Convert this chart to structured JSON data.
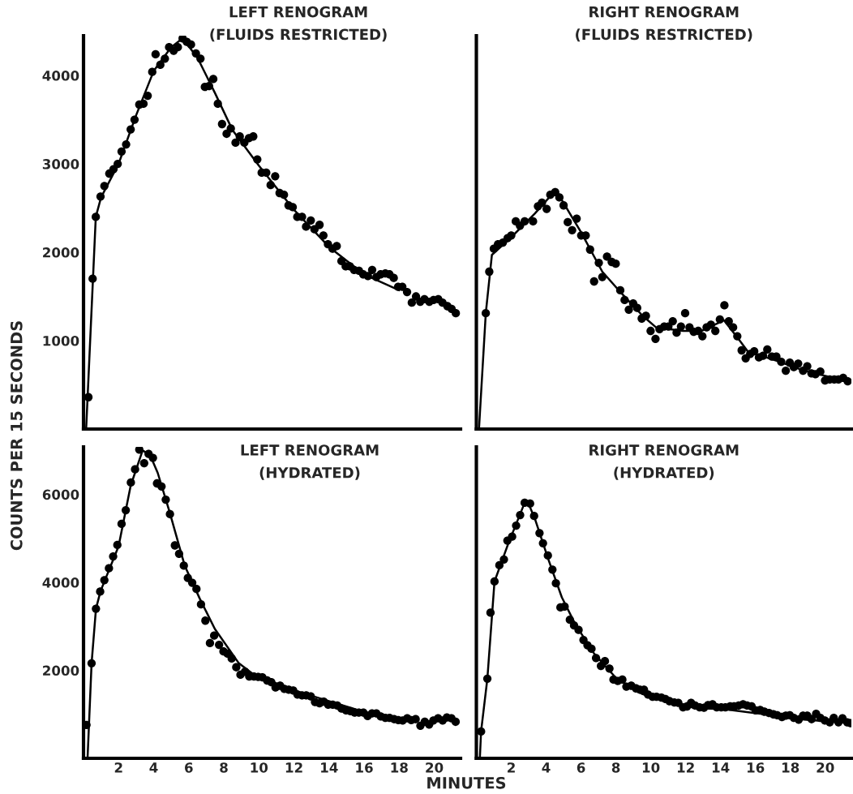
{
  "chart_data": [
    {
      "type": "scatter",
      "title": "LEFT RENOGRAM",
      "subtitle": "(FLUIDS RESTRICTED)",
      "ylabel": "COUNTS PER 15 SECONDS",
      "xlim": [
        0,
        21.5
      ],
      "xticks": [
        2,
        4,
        6,
        8,
        10,
        12,
        14,
        16,
        18,
        20
      ],
      "ylim": [
        0,
        4450
      ],
      "yticks": [
        1000,
        2000,
        3000,
        4000
      ],
      "tick_labels": "y",
      "line_style": "solid",
      "grid": false,
      "legend": false,
      "series": [
        {
          "marker": "circle",
          "color": "#000000",
          "x": [
            0.28,
            0.52,
            0.7,
            0.97,
            1.19,
            1.47,
            1.71,
            1.95,
            2.17,
            2.43,
            2.69,
            2.91,
            3.18,
            3.42,
            3.66,
            3.92,
            4.11,
            4.38,
            4.64,
            4.88,
            5.14,
            5.38,
            5.65,
            5.89,
            6.13,
            6.41,
            6.67,
            6.92,
            7.16,
            7.4,
            7.66,
            7.9,
            8.16,
            8.4,
            8.67,
            8.91,
            9.17,
            9.43,
            9.68,
            9.91,
            10.16,
            10.42,
            10.67,
            10.93,
            11.18,
            11.43,
            11.69,
            11.93,
            12.19,
            12.46,
            12.69,
            12.96,
            13.17,
            13.46,
            13.68,
            13.94,
            14.2,
            14.44,
            14.71,
            14.95,
            15.19,
            15.43,
            15.71,
            15.95,
            16.22,
            16.46,
            16.7,
            16.94,
            17.21,
            17.45,
            17.69,
            17.94,
            18.18,
            18.45,
            18.72,
            18.96,
            19.2,
            19.44,
            19.72,
            19.96,
            20.23,
            20.47,
            20.75,
            20.99,
            21.23
          ],
          "values": [
            360,
            1700,
            2400,
            2630,
            2750,
            2890,
            2940,
            3000,
            3140,
            3220,
            3390,
            3500,
            3670,
            3680,
            3770,
            4040,
            4240,
            4120,
            4190,
            4320,
            4280,
            4320,
            4420,
            4380,
            4350,
            4250,
            4190,
            3870,
            3880,
            3960,
            3680,
            3450,
            3340,
            3400,
            3240,
            3310,
            3240,
            3290,
            3310,
            3050,
            2900,
            2900,
            2760,
            2860,
            2670,
            2650,
            2530,
            2510,
            2400,
            2400,
            2290,
            2360,
            2260,
            2310,
            2190,
            2090,
            2040,
            2070,
            1900,
            1840,
            1840,
            1800,
            1790,
            1750,
            1730,
            1800,
            1720,
            1750,
            1760,
            1750,
            1710,
            1610,
            1610,
            1550,
            1430,
            1500,
            1440,
            1470,
            1440,
            1460,
            1470,
            1430,
            1390,
            1360,
            1310
          ]
        },
        {
          "type": "line",
          "color": "#000000",
          "x": [
            0.15,
            0.7,
            1.0,
            2.0,
            3.0,
            4.0,
            5.0,
            5.65,
            6.5,
            7.5,
            8.5,
            10.0,
            12.0,
            14.0,
            16.0,
            18.0
          ],
          "values": [
            0,
            2400,
            2620,
            3000,
            3550,
            4050,
            4320,
            4420,
            4200,
            3800,
            3380,
            2980,
            2480,
            2060,
            1750,
            1570
          ]
        }
      ]
    },
    {
      "type": "scatter",
      "title": "RIGHT RENOGRAM",
      "subtitle": "(FLUIDS RESTRICTED)",
      "xlim": [
        0,
        21.5
      ],
      "xticks": [
        2,
        4,
        6,
        8,
        10,
        12,
        14,
        16,
        18,
        20
      ],
      "ylim": [
        0,
        4450
      ],
      "yticks": [
        1000,
        2000,
        3000,
        4000
      ],
      "tick_labels": false,
      "line_style": "solid",
      "grid": false,
      "legend": false,
      "series": [
        {
          "marker": "circle",
          "color": "#000000",
          "x": [
            0.54,
            0.74,
            1.0,
            1.24,
            1.52,
            1.79,
            2.0,
            2.26,
            2.5,
            2.77,
            3.25,
            3.53,
            3.76,
            4.03,
            4.24,
            4.52,
            4.76,
            5.0,
            5.24,
            5.49,
            5.75,
            6.01,
            6.27,
            6.52,
            6.75,
            7.02,
            7.22,
            7.49,
            7.76,
            7.99,
            8.25,
            8.5,
            8.74,
            8.99,
            9.22,
            9.48,
            9.72,
            9.99,
            10.27,
            10.5,
            10.77,
            11.01,
            11.26,
            11.48,
            11.73,
            11.97,
            12.22,
            12.46,
            12.72,
            12.96,
            13.2,
            13.45,
            13.7,
            13.96,
            14.22,
            14.47,
            14.72,
            14.96,
            15.21,
            15.44,
            15.7,
            15.93,
            16.2,
            16.44,
            16.68,
            16.94,
            17.2,
            17.48,
            17.74,
            17.97,
            18.2,
            18.45,
            18.73,
            18.97,
            19.21,
            19.44,
            19.72,
            19.99,
            20.26,
            20.52,
            20.76,
            21.03,
            21.29
          ],
          "values": [
            1310,
            1780,
            2040,
            2090,
            2110,
            2160,
            2190,
            2350,
            2300,
            2350,
            2350,
            2520,
            2560,
            2490,
            2650,
            2680,
            2620,
            2530,
            2340,
            2250,
            2380,
            2190,
            2190,
            2030,
            1670,
            1880,
            1720,
            1950,
            1890,
            1870,
            1570,
            1460,
            1350,
            1420,
            1370,
            1250,
            1280,
            1110,
            1020,
            1130,
            1160,
            1160,
            1220,
            1090,
            1160,
            1310,
            1150,
            1100,
            1110,
            1050,
            1150,
            1180,
            1110,
            1240,
            1400,
            1220,
            1150,
            1050,
            890,
            800,
            850,
            880,
            810,
            830,
            900,
            820,
            820,
            760,
            660,
            750,
            700,
            740,
            660,
            710,
            630,
            620,
            650,
            550,
            560,
            560,
            560,
            580,
            540
          ]
        },
        {
          "type": "line",
          "color": "#000000",
          "x": [
            0.15,
            0.54,
            0.89,
            2.0,
            3.36,
            4.49,
            4.9,
            5.99,
            7.22,
            8.3,
            9.54,
            10.3,
            11.85,
            12.9,
            14.2,
            15.1,
            15.55,
            17.25,
            18.8,
            21.29
          ],
          "values": [
            0,
            1310,
            1970,
            2170,
            2440,
            2690,
            2590,
            2230,
            1780,
            1540,
            1280,
            1150,
            1110,
            1110,
            1230,
            1000,
            880,
            770,
            660,
            540
          ]
        }
      ]
    },
    {
      "type": "scatter",
      "title": "LEFT RENOGRAM",
      "subtitle": "(HYDRATED)",
      "xlabel": "MINUTES",
      "xlim": [
        0,
        21.5
      ],
      "xticks": [
        2,
        4,
        6,
        8,
        10,
        12,
        14,
        16,
        18,
        20
      ],
      "ylim": [
        0,
        7080
      ],
      "yticks": [
        2000,
        4000,
        6000
      ],
      "line_style": "solid",
      "grid": false,
      "legend": false,
      "series": [
        {
          "marker": "circle",
          "color": "#000000",
          "x": [
            0.17,
            0.46,
            0.71,
            0.95,
            1.19,
            1.45,
            1.69,
            1.93,
            2.17,
            2.41,
            2.7,
            2.94,
            3.18,
            3.46,
            3.71,
            3.96,
            4.19,
            4.45,
            4.69,
            4.93,
            5.21,
            5.45,
            5.72,
            5.95,
            6.2,
            6.44,
            6.7,
            6.95,
            7.21,
            7.45,
            7.73,
            7.98,
            8.21,
            8.45,
            8.71,
            8.95,
            9.21,
            9.45,
            9.72,
            9.96,
            10.2,
            10.47,
            10.71,
            10.95,
            11.21,
            11.45,
            11.7,
            11.96,
            12.2,
            12.46,
            12.7,
            12.96,
            13.2,
            13.46,
            13.7,
            13.95,
            14.21,
            14.47,
            14.71,
            14.97,
            15.22,
            15.46,
            15.7,
            15.96,
            16.2,
            16.45,
            16.7,
            16.95,
            17.21,
            17.45,
            17.71,
            17.95,
            18.2,
            18.46,
            18.69,
            18.94,
            19.21,
            19.46,
            19.71,
            19.95,
            20.22,
            20.48,
            20.72,
            20.98,
            21.22
          ],
          "values": [
            760,
            2160,
            3400,
            3790,
            4050,
            4320,
            4590,
            4850,
            5330,
            5640,
            6270,
            6570,
            7020,
            6710,
            6920,
            6830,
            6250,
            6180,
            5880,
            5550,
            4840,
            4650,
            4380,
            4100,
            3990,
            3850,
            3500,
            3130,
            2620,
            2790,
            2580,
            2430,
            2380,
            2270,
            2070,
            1900,
            1970,
            1860,
            1860,
            1850,
            1840,
            1770,
            1730,
            1610,
            1650,
            1580,
            1560,
            1540,
            1450,
            1430,
            1430,
            1410,
            1280,
            1250,
            1290,
            1220,
            1220,
            1200,
            1130,
            1090,
            1070,
            1040,
            1040,
            1040,
            960,
            1020,
            1020,
            950,
            920,
            920,
            890,
            870,
            860,
            910,
            870,
            890,
            740,
            830,
            770,
            860,
            910,
            860,
            930,
            910,
            830
          ]
        },
        {
          "type": "line",
          "color": "#000000",
          "x": [
            0.23,
            0.46,
            0.71,
            0.97,
            2.0,
            2.69,
            3.37,
            3.8,
            4.23,
            4.91,
            5.77,
            6.63,
            7.49,
            8.86,
            9.72,
            12.29,
            15.72,
            18.12
          ],
          "values": [
            0,
            2160,
            3400,
            3800,
            4820,
            6200,
            7000,
            6890,
            6490,
            5600,
            4380,
            3630,
            2940,
            2160,
            1900,
            1510,
            1090,
            860
          ]
        }
      ]
    },
    {
      "type": "scatter",
      "title": "RIGHT RENOGRAM",
      "subtitle": "(HYDRATED)",
      "xlim": [
        0,
        21.5
      ],
      "xticks": [
        2,
        4,
        6,
        8,
        10,
        12,
        14,
        16,
        18,
        20
      ],
      "ylim": [
        0,
        7080
      ],
      "yticks": [
        2000,
        4000,
        6000
      ],
      "tick_labels": "x",
      "line_style": "solid",
      "grid": false,
      "legend": false,
      "series": [
        {
          "marker": "circle",
          "color": "#000000",
          "x": [
            0.27,
            0.63,
            0.81,
            1.04,
            1.32,
            1.58,
            1.78,
            2.05,
            2.28,
            2.51,
            2.77,
            3.08,
            3.31,
            3.62,
            3.82,
            4.1,
            4.36,
            4.56,
            4.82,
            5.06,
            5.36,
            5.6,
            5.86,
            6.14,
            6.37,
            6.6,
            6.86,
            7.14,
            7.37,
            7.63,
            7.86,
            8.11,
            8.37,
            8.6,
            8.88,
            9.15,
            9.38,
            9.61,
            9.84,
            10.1,
            10.33,
            10.61,
            10.84,
            11.07,
            11.35,
            11.58,
            11.85,
            12.08,
            12.31,
            12.54,
            12.8,
            13.05,
            13.28,
            13.54,
            13.78,
            14.04,
            14.28,
            14.55,
            14.78,
            15.04,
            15.29,
            15.52,
            15.78,
            16.01,
            16.27,
            16.51,
            16.78,
            17.03,
            17.25,
            17.52,
            17.74,
            17.97,
            18.2,
            18.48,
            18.73,
            18.97,
            19.22,
            19.48,
            19.72,
            19.98,
            20.26,
            20.49,
            20.76,
            20.99,
            21.26,
            21.45
          ],
          "values": [
            610,
            1810,
            3310,
            4020,
            4390,
            4520,
            4950,
            5040,
            5290,
            5530,
            5810,
            5790,
            5510,
            5120,
            4890,
            4610,
            4290,
            3980,
            3430,
            3450,
            3150,
            3020,
            2920,
            2690,
            2570,
            2490,
            2280,
            2100,
            2210,
            2040,
            1790,
            1760,
            1790,
            1630,
            1650,
            1590,
            1560,
            1560,
            1450,
            1400,
            1400,
            1380,
            1350,
            1300,
            1270,
            1260,
            1160,
            1180,
            1260,
            1200,
            1160,
            1150,
            1210,
            1230,
            1160,
            1160,
            1160,
            1180,
            1180,
            1200,
            1230,
            1200,
            1180,
            1090,
            1100,
            1060,
            1030,
            1000,
            980,
            940,
            970,
            980,
            920,
            880,
            970,
            970,
            890,
            1010,
            920,
            860,
            820,
            920,
            820,
            910,
            820,
            800
          ]
        },
        {
          "type": "line",
          "color": "#000000",
          "x": [
            0.2,
            0.27,
            0.63,
            1.04,
            1.81,
            2.77,
            2.97,
            3.36,
            4.13,
            4.9,
            5.67,
            6.75,
            8.0,
            9.53,
            11.07,
            12.62,
            14.16,
            15.7,
            17.25,
            18.79,
            21.42
          ],
          "values": [
            0,
            610,
            1810,
            4020,
            4860,
            5810,
            5810,
            5440,
            4520,
            3660,
            3050,
            2380,
            1830,
            1460,
            1270,
            1140,
            1120,
            1040,
            970,
            880,
            800
          ]
        }
      ]
    }
  ]
}
